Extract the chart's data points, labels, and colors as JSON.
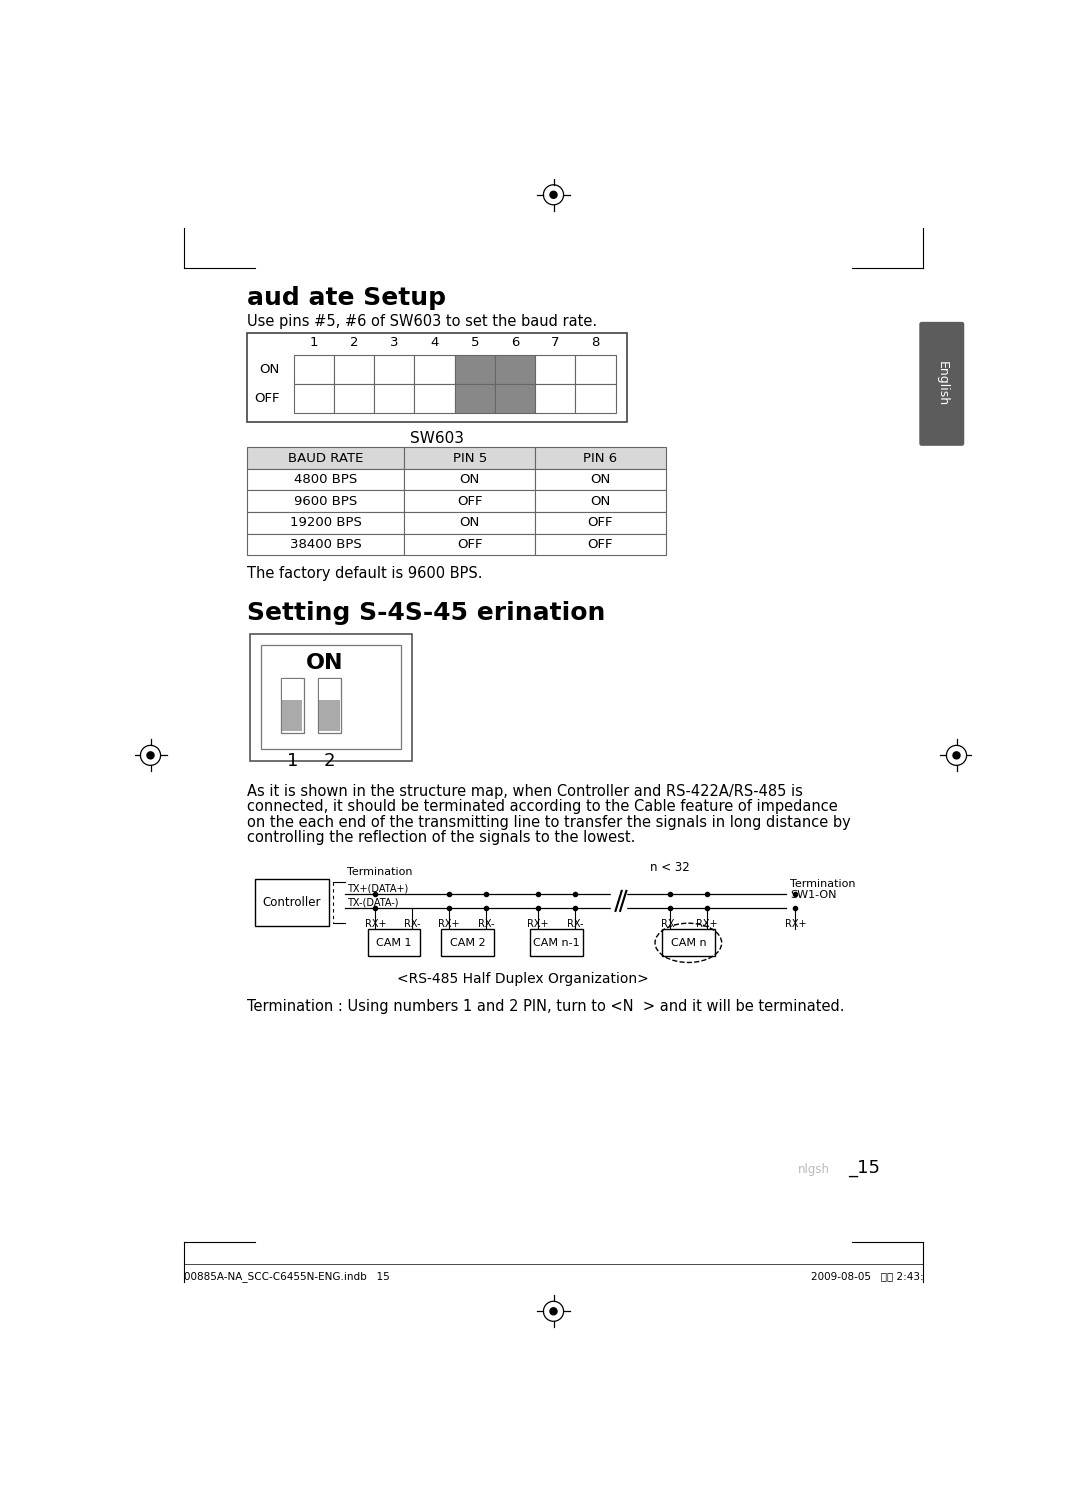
{
  "bg_color": "#ffffff",
  "section1_title": "aud ate Setup",
  "section1_subtitle": "Use pins #5, #6 of SW603 to set the baud rate.",
  "sw603_pins": [
    "1",
    "2",
    "3",
    "4",
    "5",
    "6",
    "7",
    "8"
  ],
  "sw603_label": "SW603",
  "sw603_highlight_pins": [
    5,
    6
  ],
  "table_header": [
    "BAUD RATE",
    "PIN 5",
    "PIN 6"
  ],
  "table_rows": [
    [
      "4800 BPS",
      "ON",
      "ON"
    ],
    [
      "9600 BPS",
      "OFF",
      "ON"
    ],
    [
      "19200 BPS",
      "ON",
      "OFF"
    ],
    [
      "38400 BPS",
      "OFF",
      "OFF"
    ]
  ],
  "factory_default_text": "The factory default is 9600 BPS.",
  "section2_title": "Setting S-4S-45 erination",
  "paragraph_text": "As it is shown in the structure map, when Controller and RS-422A/RS-485 is\nconnected, it should be terminated according to the Cable feature of impedance\non the each end of the transmitting line to transfer the signals in long distance by\ncontrolling the reflection of the signals to the lowest.",
  "diagram_caption": "<RS-485 Half Duplex Organization>",
  "termination_note": "Termination : Using numbers 1 and 2 PIN, turn to <N  > and it will be terminated.",
  "page_number": "_15",
  "page_footer_left": "00885A-NA_SCC-C6455N-ENG.indb   15",
  "page_footer_right": "2009-08-05   오후 2:43:",
  "english_tab_text": "English"
}
